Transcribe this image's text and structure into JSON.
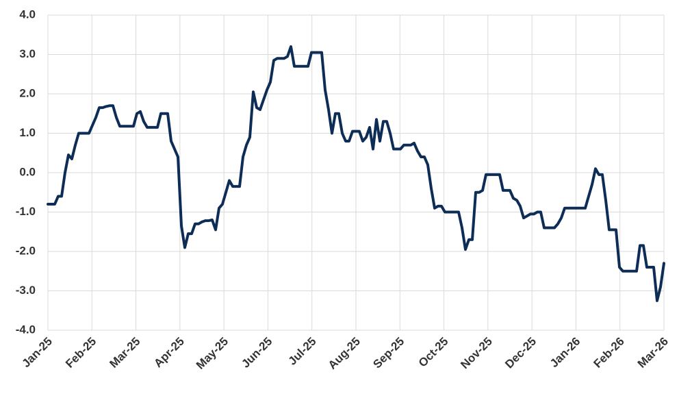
{
  "chart_data": {
    "type": "line",
    "xticks": [
      "Jan-25",
      "Feb-25",
      "Mar-25",
      "Apr-25",
      "May-25",
      "Jun-25",
      "Jul-25",
      "Aug-25",
      "Sep-25",
      "Oct-25",
      "Nov-25",
      "Dec-25",
      "Jan-26",
      "Feb-26",
      "Mar-26"
    ],
    "series": [
      {
        "color": "#0e2d56",
        "values": [
          -0.8,
          -0.8,
          -0.8,
          -0.6,
          -0.6,
          0.0,
          0.45,
          0.35,
          0.7,
          1.0,
          1.0,
          1.0,
          1.0,
          1.2,
          1.4,
          1.65,
          1.65,
          1.68,
          1.7,
          1.7,
          1.4,
          1.18,
          1.18,
          1.18,
          1.18,
          1.18,
          1.5,
          1.55,
          1.3,
          1.15,
          1.15,
          1.15,
          1.15,
          1.5,
          1.5,
          1.5,
          0.8,
          0.6,
          0.4,
          -1.35,
          -1.9,
          -1.55,
          -1.55,
          -1.3,
          -1.3,
          -1.25,
          -1.22,
          -1.22,
          -1.2,
          -1.45,
          -0.9,
          -0.8,
          -0.5,
          -0.2,
          -0.35,
          -0.35,
          -0.35,
          0.4,
          0.7,
          0.9,
          2.05,
          1.65,
          1.6,
          1.85,
          2.1,
          2.3,
          2.85,
          2.9,
          2.9,
          2.9,
          2.95,
          3.2,
          2.7,
          2.7,
          2.7,
          2.7,
          2.7,
          3.05,
          3.05,
          3.05,
          3.05,
          2.1,
          1.6,
          1.0,
          1.5,
          1.5,
          1.0,
          0.8,
          0.8,
          1.05,
          1.05,
          1.05,
          0.8,
          0.9,
          1.15,
          0.6,
          1.35,
          0.8,
          1.3,
          1.3,
          1.0,
          0.6,
          0.6,
          0.6,
          0.7,
          0.7,
          0.7,
          0.75,
          0.55,
          0.4,
          0.4,
          0.2,
          -0.4,
          -0.9,
          -0.85,
          -0.85,
          -1.0,
          -1.0,
          -1.0,
          -1.0,
          -1.0,
          -1.4,
          -1.95,
          -1.7,
          -1.7,
          -0.5,
          -0.5,
          -0.45,
          -0.05,
          -0.05,
          -0.05,
          -0.05,
          -0.05,
          -0.45,
          -0.45,
          -0.45,
          -0.65,
          -0.7,
          -0.85,
          -1.15,
          -1.1,
          -1.05,
          -1.05,
          -1.0,
          -1.0,
          -1.4,
          -1.4,
          -1.4,
          -1.4,
          -1.3,
          -1.15,
          -0.9,
          -0.9,
          -0.9,
          -0.9,
          -0.9,
          -0.9,
          -0.9,
          -0.6,
          -0.3,
          0.1,
          -0.05,
          -0.05,
          -0.7,
          -1.45,
          -1.45,
          -1.45,
          -2.4,
          -2.5,
          -2.5,
          -2.5,
          -2.5,
          -2.5,
          -1.85,
          -1.85,
          -2.4,
          -2.4,
          -2.4,
          -3.25,
          -2.9,
          -2.3
        ]
      }
    ],
    "ylim": [
      -4,
      4
    ],
    "yticks": [
      {
        "value": -4,
        "label": "-4.0"
      },
      {
        "value": -3,
        "label": "-3.0"
      },
      {
        "value": -2,
        "label": "-2.0"
      },
      {
        "value": -1,
        "label": "-1.0"
      },
      {
        "value": 0,
        "label": "0.0"
      },
      {
        "value": 1,
        "label": "1.0"
      },
      {
        "value": 2,
        "label": "2.0"
      },
      {
        "value": 3,
        "label": "3.0"
      },
      {
        "value": 4,
        "label": "4.0"
      }
    ],
    "grid": true
  }
}
